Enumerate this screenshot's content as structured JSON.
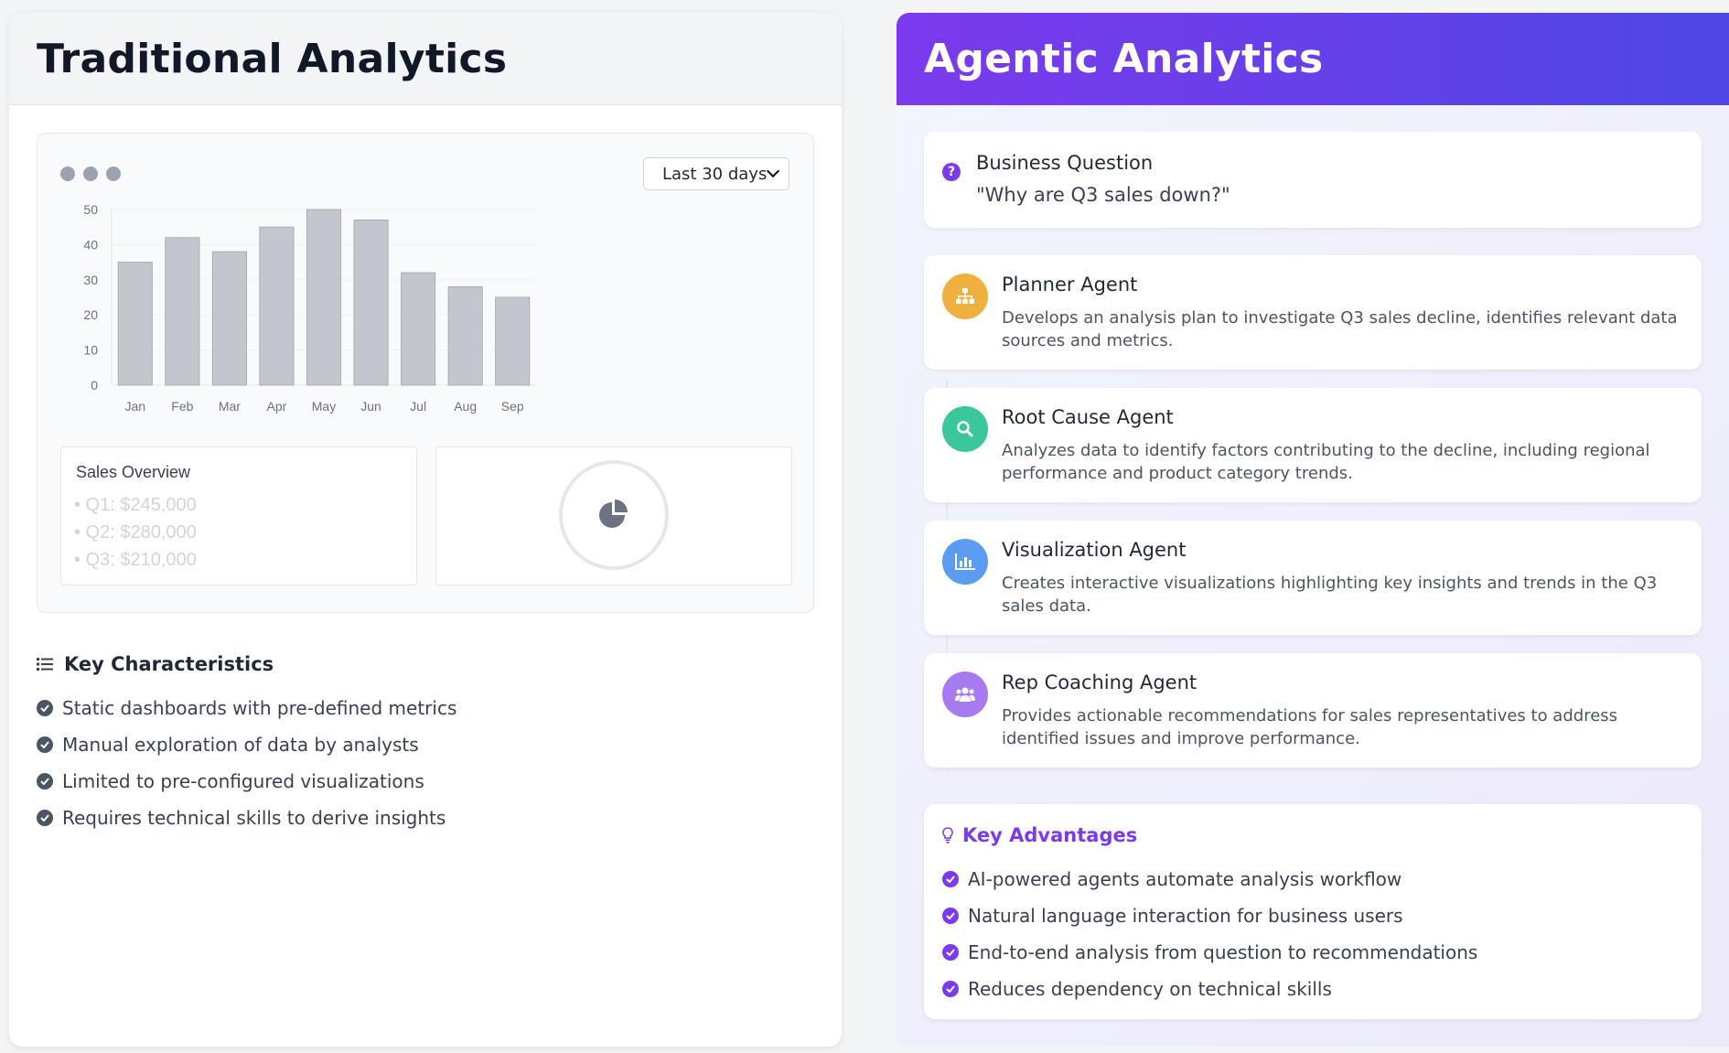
{
  "traditional": {
    "title": "Traditional Analytics",
    "dashboard": {
      "range_select": "Last 30 days",
      "sales_overview": {
        "title": "Sales Overview",
        "items": [
          "• Q1: $245,000",
          "• Q2: $280,000",
          "• Q3: $210,000"
        ]
      }
    },
    "key_characteristics": {
      "title": "Key Characteristics",
      "items": [
        "Static dashboards with pre-defined metrics",
        "Manual exploration of data by analysts",
        "Limited to pre-configured visualizations",
        "Requires technical skills to derive insights"
      ]
    }
  },
  "chart_data": {
    "type": "bar",
    "categories": [
      "Jan",
      "Feb",
      "Mar",
      "Apr",
      "May",
      "Jun",
      "Jul",
      "Aug",
      "Sep"
    ],
    "values": [
      35,
      42,
      38,
      45,
      50,
      47,
      32,
      28,
      25
    ],
    "title": "",
    "xlabel": "",
    "ylabel": "",
    "ylim": [
      0,
      50
    ],
    "yticks": [
      0,
      10,
      20,
      30,
      40,
      50
    ],
    "grid": true,
    "bar_color": "#c3c7cd"
  },
  "agentic": {
    "title": "Agentic Analytics",
    "question": {
      "title": "Business Question",
      "text": "\"Why are Q3 sales down?\""
    },
    "agents": [
      {
        "name": "Planner Agent",
        "desc": "Develops an analysis plan to investigate Q3 sales decline, identifies relevant data sources and metrics.",
        "icon": "sitemap-icon",
        "color": "#f0b040"
      },
      {
        "name": "Root Cause Agent",
        "desc": "Analyzes data to identify factors contributing to the decline, including regional performance and product category trends.",
        "icon": "search-icon",
        "color": "#3cc79a"
      },
      {
        "name": "Visualization Agent",
        "desc": "Creates interactive visualizations highlighting key insights and trends in the Q3 sales data.",
        "icon": "chart-bar-icon",
        "color": "#5b9cf0"
      },
      {
        "name": "Rep Coaching Agent",
        "desc": "Provides actionable recommendations for sales representatives to address identified issues and improve performance.",
        "icon": "users-icon",
        "color": "#a87af0"
      }
    ],
    "key_advantages": {
      "title": "Key Advantages",
      "items": [
        "AI-powered agents automate analysis workflow",
        "Natural language interaction for business users",
        "End-to-end analysis from question to recommendations",
        "Reduces dependency on technical skills"
      ]
    }
  },
  "colors": {
    "purple_accent": "#7c3aed",
    "indigo_accent": "#4f46e5",
    "check_gray": "#4b5563"
  }
}
